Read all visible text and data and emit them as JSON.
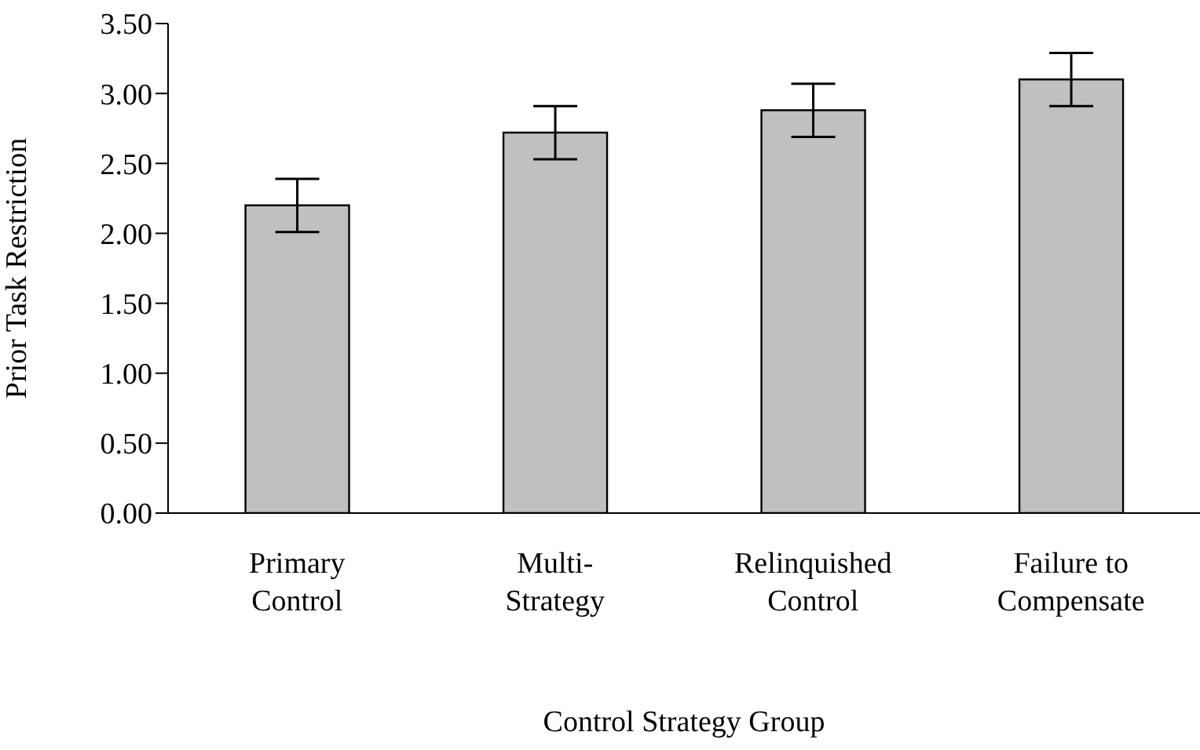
{
  "chart_data": {
    "type": "bar",
    "xlabel": "Control Strategy Group",
    "ylabel": "Prior Task Restriction",
    "categories": [
      "Primary Control",
      "Multi-Strategy",
      "Relinquished Control",
      "Failure to Compensate"
    ],
    "values": [
      2.2,
      2.72,
      2.88,
      3.1
    ],
    "errors": [
      0.19,
      0.19,
      0.19,
      0.19
    ],
    "color": "#c0c0c0",
    "ylim": [
      0,
      3.5
    ],
    "yticks": [
      {
        "value": 0,
        "label": "0.00"
      },
      {
        "value": 0.5,
        "label": "0.50"
      },
      {
        "value": 1,
        "label": "1.00"
      },
      {
        "value": 1.5,
        "label": "1.50"
      },
      {
        "value": 2,
        "label": "2.00"
      },
      {
        "value": 2.5,
        "label": "2.50"
      },
      {
        "value": 3,
        "label": "3.00"
      },
      {
        "value": 3.5,
        "label": "3.50"
      }
    ],
    "grid": false,
    "legend": false
  }
}
